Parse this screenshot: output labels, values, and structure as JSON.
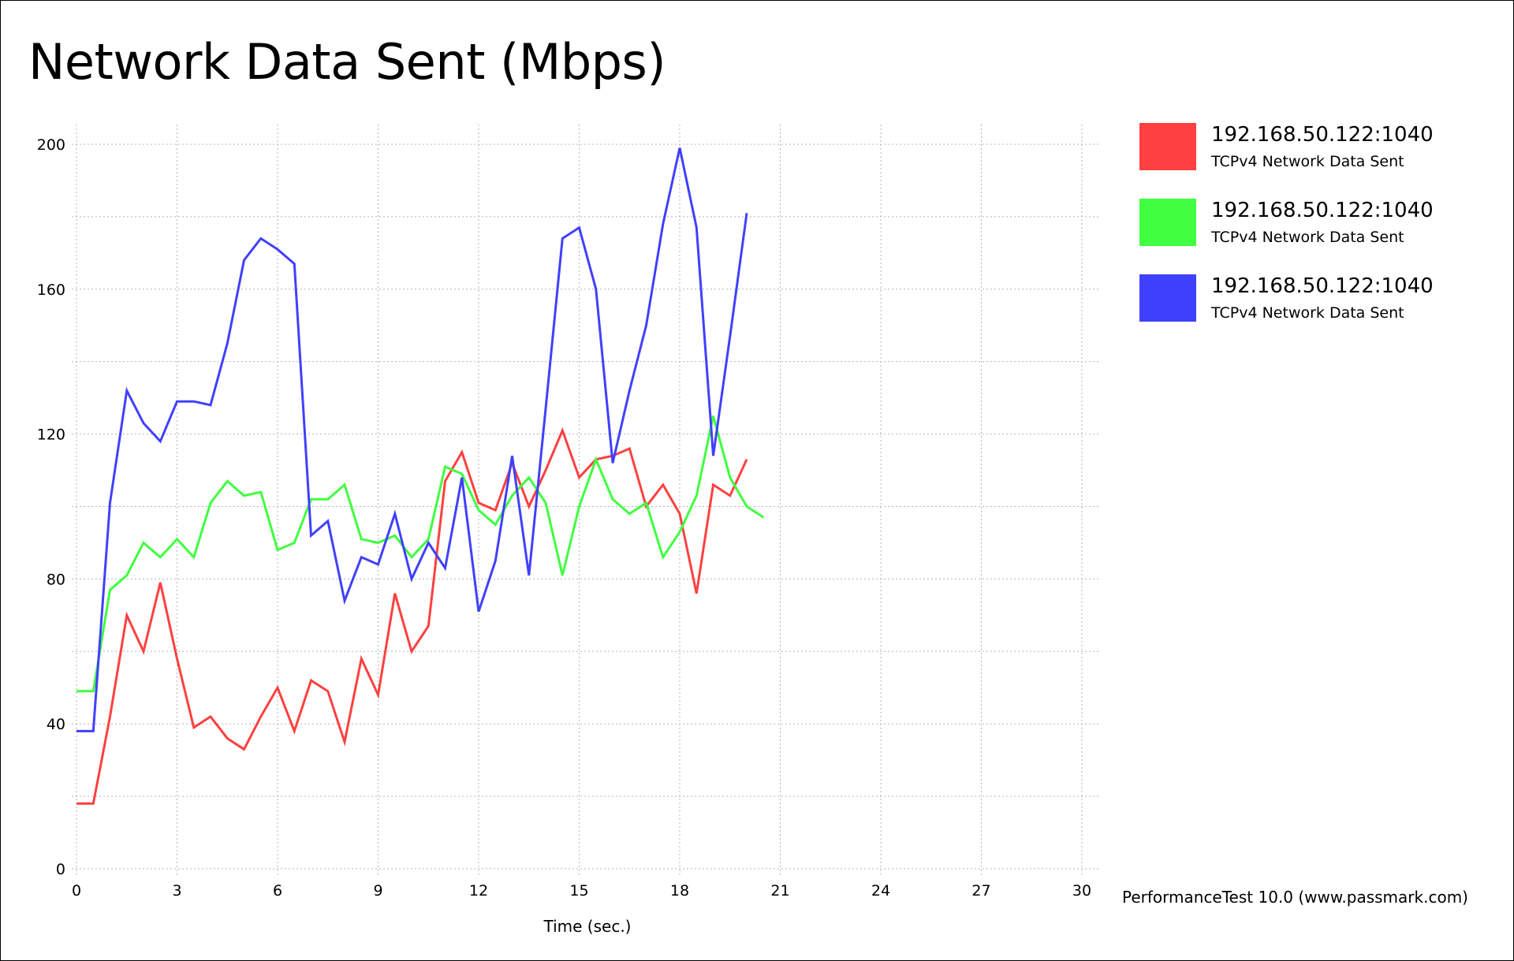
{
  "chart_data": {
    "type": "line",
    "title": "Network Data Sent (Mbps)",
    "xlabel": "Time (sec.)",
    "ylabel": "",
    "xlim": [
      0,
      30
    ],
    "ylim": [
      0,
      200
    ],
    "x_ticks": [
      0,
      3,
      6,
      9,
      12,
      15,
      18,
      21,
      24,
      27,
      30
    ],
    "y_ticks": [
      0,
      40,
      80,
      120,
      160,
      200
    ],
    "grid": true,
    "legend_position": "top-right",
    "credit": "PerformanceTest 10.0 (www.passmark.com)",
    "series": [
      {
        "name": "192.168.50.122:1040",
        "subtitle": "TCPv4 Network Data Sent",
        "color": "#ff4040",
        "x": [
          0,
          0.5,
          1,
          1.5,
          2,
          2.5,
          3,
          3.5,
          4,
          4.5,
          5,
          5.5,
          6,
          6.5,
          7,
          7.5,
          8,
          8.5,
          9,
          9.5,
          10,
          10.5,
          11,
          11.5,
          12,
          12.5,
          13,
          13.5,
          14,
          14.5,
          15,
          15.5,
          16,
          16.5,
          17,
          17.5,
          18,
          18.5,
          19,
          19.5,
          20
        ],
        "y": [
          18,
          18,
          42,
          70,
          60,
          79,
          58,
          39,
          42,
          36,
          33,
          42,
          50,
          38,
          52,
          49,
          35,
          58,
          48,
          76,
          60,
          67,
          107,
          115,
          101,
          99,
          112,
          100,
          110,
          121,
          108,
          113,
          114,
          116,
          100,
          106,
          98,
          76,
          106,
          103,
          113
        ]
      },
      {
        "name": "192.168.50.122:1040",
        "subtitle": "TCPv4 Network Data Sent",
        "color": "#40ff40",
        "x": [
          0,
          0.5,
          1,
          1.5,
          2,
          2.5,
          3,
          3.5,
          4,
          4.5,
          5,
          5.5,
          6,
          6.5,
          7,
          7.5,
          8,
          8.5,
          9,
          9.5,
          10,
          10.5,
          11,
          11.5,
          12,
          12.5,
          13,
          13.5,
          14,
          14.5,
          15,
          15.5,
          16,
          16.5,
          17,
          17.5,
          18,
          18.5,
          19,
          19.5,
          20,
          20.5
        ],
        "y": [
          49,
          49,
          77,
          81,
          90,
          86,
          91,
          86,
          101,
          107,
          103,
          104,
          88,
          90,
          102,
          102,
          106,
          91,
          90,
          92,
          86,
          91,
          111,
          109,
          99,
          95,
          103,
          108,
          101,
          81,
          100,
          113,
          102,
          98,
          101,
          86,
          93,
          103,
          125,
          108,
          100,
          97
        ]
      },
      {
        "name": "192.168.50.122:1040",
        "subtitle": "TCPv4 Network Data Sent",
        "color": "#4040ff",
        "x": [
          0,
          0.5,
          1,
          1.5,
          2,
          2.5,
          3,
          3.5,
          4,
          4.5,
          5,
          5.5,
          6,
          6.5,
          7,
          7.5,
          8,
          8.5,
          9,
          9.5,
          10,
          10.5,
          11,
          11.5,
          12,
          12.5,
          13,
          13.5,
          14,
          14.5,
          15,
          15.5,
          16,
          16.5,
          17,
          17.5,
          18,
          18.5,
          19,
          19.5,
          20
        ],
        "y": [
          38,
          38,
          101,
          132,
          123,
          118,
          129,
          129,
          128,
          145,
          168,
          174,
          171,
          167,
          92,
          96,
          74,
          86,
          84,
          98,
          80,
          90,
          83,
          108,
          71,
          85,
          114,
          81,
          127,
          174,
          177,
          160,
          112,
          132,
          150,
          178,
          199,
          177,
          114,
          147,
          181
        ]
      }
    ]
  }
}
